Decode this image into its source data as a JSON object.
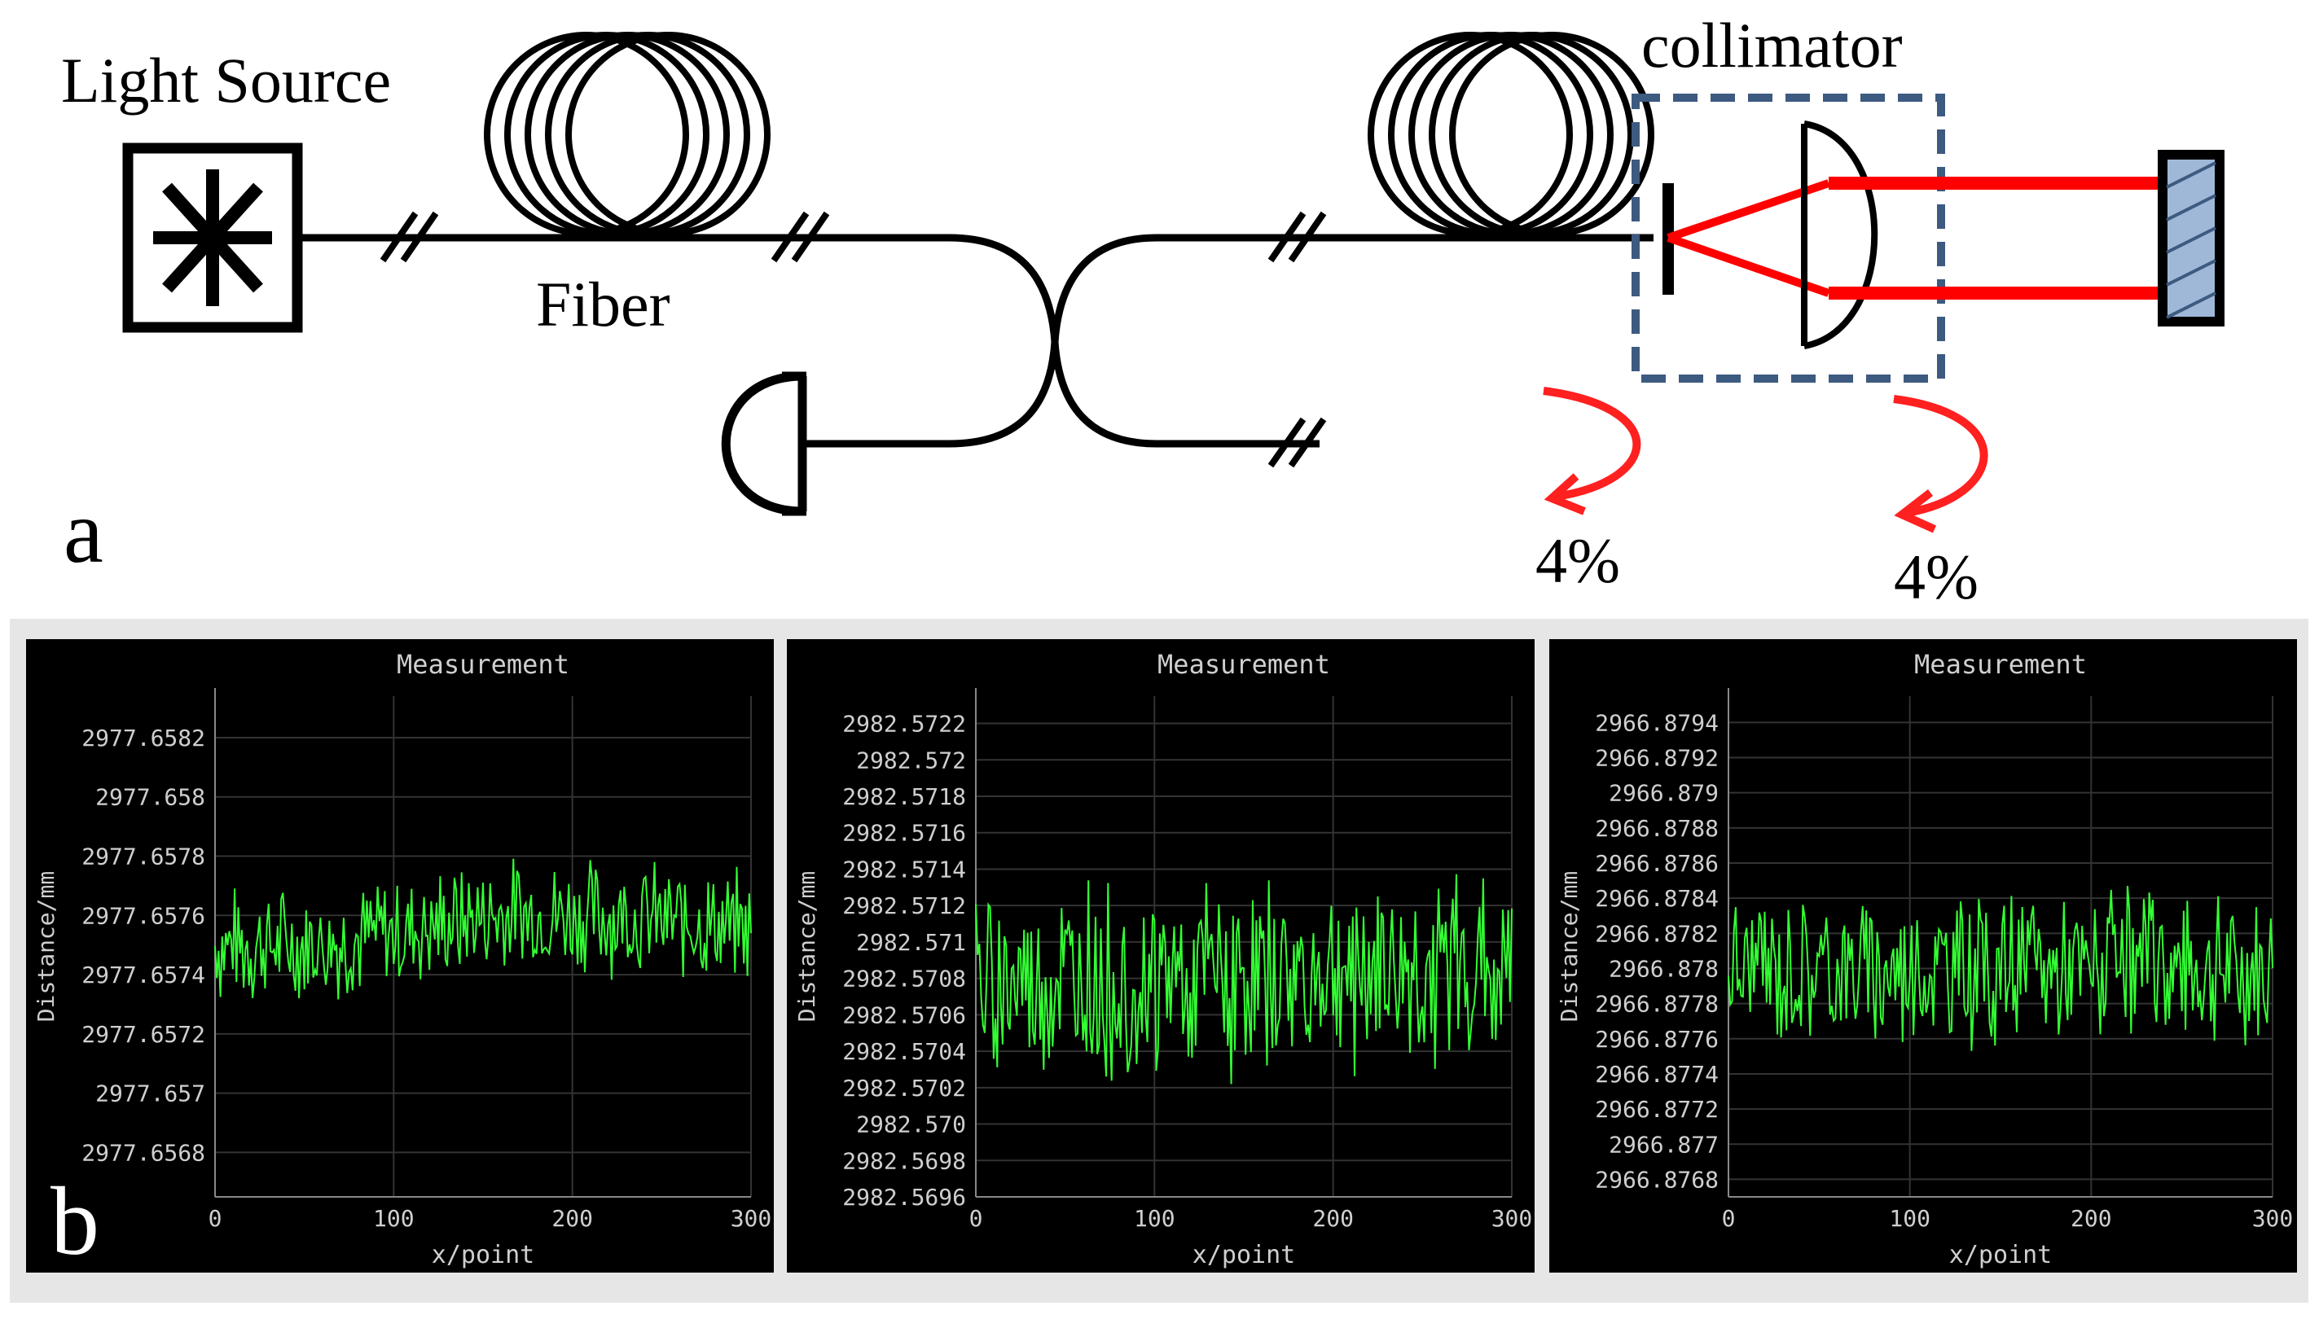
{
  "panel_a": {
    "light_source_label": "Light Source",
    "fiber_label": "Fiber",
    "collimator_label": "collimator",
    "reflect_left": "4%",
    "reflect_right": "4%",
    "panel_letter": "a",
    "colors": {
      "beam": "#ff0000",
      "box": "#3d5a80",
      "line": "#000000"
    }
  },
  "panel_b": {
    "panel_letter": "b",
    "plot_bg": "#000000",
    "grid_color": "#333333",
    "trace_color": "#33ff33"
  },
  "chart_data": [
    {
      "type": "line",
      "title": "Measurement",
      "xlabel": "x/point",
      "ylabel": "Distance/mm",
      "xlim": [
        0,
        300
      ],
      "x_ticks": [
        "0",
        "100",
        "200",
        "300"
      ],
      "ylim": [
        2977.65665,
        2977.65834
      ],
      "y_ticks": [
        2977.6582,
        2977.658,
        2977.6578,
        2977.6576,
        2977.6574,
        2977.6572,
        2977.657,
        2977.6568
      ],
      "y_tick_labels": [
        "2977.6582",
        "2977.658",
        "2977.6578",
        "2977.6576",
        "2977.6574",
        "2977.6572",
        "2977.657",
        "2977.6568"
      ],
      "series": [
        {
          "center": 2977.65755,
          "amplitude": 0.00022,
          "points": 301,
          "seed": 7,
          "drift": [
            [
              0,
              2977.6575
            ],
            [
              60,
              2977.6575
            ],
            [
              160,
              2977.6576
            ],
            [
              220,
              2977.6576
            ],
            [
              300,
              2977.65755
            ]
          ]
        }
      ]
    },
    {
      "type": "line",
      "title": "Measurement",
      "xlabel": "x/point",
      "ylabel": "Distance/mm",
      "xlim": [
        0,
        300
      ],
      "x_ticks": [
        "0",
        "100",
        "200",
        "300"
      ],
      "ylim": [
        2982.5696,
        2982.57235
      ],
      "y_ticks": [
        2982.5722,
        2982.572,
        2982.5718,
        2982.5716,
        2982.5714,
        2982.5712,
        2982.571,
        2982.5708,
        2982.5706,
        2982.5704,
        2982.5702,
        2982.57,
        2982.5698,
        2982.5696
      ],
      "y_tick_labels": [
        "2982.5722",
        "2982.572",
        "2982.5718",
        "2982.5716",
        "2982.5714",
        "2982.5712",
        "2982.571",
        "2982.5708",
        "2982.5706",
        "2982.5704",
        "2982.5702",
        "2982.570",
        "2982.5698",
        "2982.5696"
      ],
      "series": [
        {
          "center": 2982.5708,
          "amplitude": 0.0006,
          "points": 301,
          "seed": 19,
          "drift": [
            [
              0,
              2982.57075
            ],
            [
              150,
              2982.5708
            ],
            [
              300,
              2982.57085
            ]
          ]
        }
      ]
    },
    {
      "type": "line",
      "title": "Measurement",
      "xlabel": "x/point",
      "ylabel": "Distance/mm",
      "xlim": [
        0,
        300
      ],
      "x_ticks": [
        "0",
        "100",
        "200",
        "300"
      ],
      "ylim": [
        2966.8767,
        2966.87955
      ],
      "y_ticks": [
        2966.8794,
        2966.8792,
        2966.879,
        2966.8788,
        2966.8786,
        2966.8784,
        2966.8782,
        2966.878,
        2966.8778,
        2966.8776,
        2966.8774,
        2966.8772,
        2966.877,
        2966.8768
      ],
      "y_tick_labels": [
        "2966.8794",
        "2966.8792",
        "2966.879",
        "2966.8788",
        "2966.8786",
        "2966.8784",
        "2966.8782",
        "2966.878",
        "2966.8778",
        "2966.8776",
        "2966.8774",
        "2966.8772",
        "2966.877",
        "2966.8768"
      ],
      "series": [
        {
          "center": 2966.878,
          "amplitude": 0.00048,
          "points": 301,
          "seed": 31,
          "drift": [
            [
              0,
              2966.878
            ],
            [
              300,
              2966.878
            ]
          ]
        }
      ]
    }
  ]
}
